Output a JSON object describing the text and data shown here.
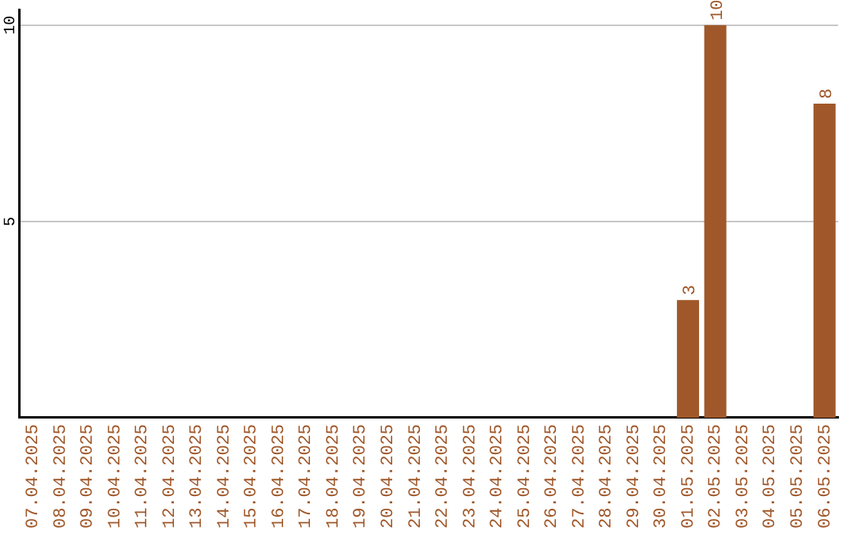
{
  "chart_data": {
    "type": "bar",
    "categories": [
      "07.04.2025",
      "08.04.2025",
      "09.04.2025",
      "10.04.2025",
      "11.04.2025",
      "12.04.2025",
      "13.04.2025",
      "14.04.2025",
      "15.04.2025",
      "16.04.2025",
      "17.04.2025",
      "18.04.2025",
      "19.04.2025",
      "20.04.2025",
      "21.04.2025",
      "22.04.2025",
      "23.04.2025",
      "24.04.2025",
      "25.04.2025",
      "26.04.2025",
      "27.04.2025",
      "28.04.2025",
      "29.04.2025",
      "30.04.2025",
      "01.05.2025",
      "02.05.2025",
      "03.05.2025",
      "04.05.2025",
      "05.05.2025",
      "06.05.2025"
    ],
    "values": [
      0,
      0,
      0,
      0,
      0,
      0,
      0,
      0,
      0,
      0,
      0,
      0,
      0,
      0,
      0,
      0,
      0,
      0,
      0,
      0,
      0,
      0,
      0,
      0,
      3,
      10,
      0,
      0,
      0,
      8
    ],
    "value_labels": [
      null,
      null,
      null,
      null,
      null,
      null,
      null,
      null,
      null,
      null,
      null,
      null,
      null,
      null,
      null,
      null,
      null,
      null,
      null,
      null,
      null,
      null,
      null,
      null,
      "3",
      "10",
      null,
      null,
      null,
      "8"
    ],
    "color": "#a0582a",
    "ylim": [
      0,
      10.4
    ],
    "yticks": [
      5,
      10
    ],
    "grid": "y",
    "legend": false
  }
}
